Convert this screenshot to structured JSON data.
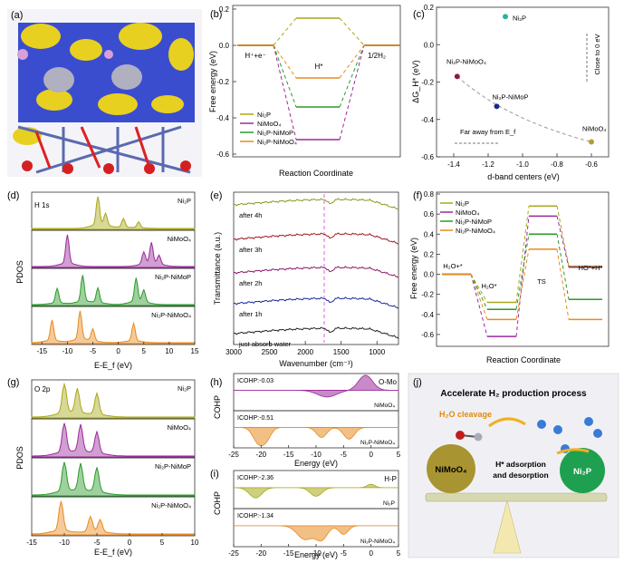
{
  "panel_letters": [
    "(a)",
    "(b)",
    "(c)",
    "(d)",
    "(e)",
    "(f)",
    "(g)",
    "(h)",
    "(i)",
    "(j)"
  ],
  "colors": {
    "ni2p": "#a8a818",
    "nimoo4": "#9a2a9a",
    "ni2p_nimop": "#2a9a2a",
    "ni2p_nimoo4": "#e88a20"
  },
  "chart_data": [
    {
      "panel": "b",
      "type": "line",
      "ylabel": "Free energy (eV)",
      "xlabel": "Reaction Coordinate",
      "ylim": [
        -0.6,
        0.2
      ],
      "yticks": [
        "0.2",
        "0.0",
        "-0.2",
        "-0.4",
        "-0.6"
      ],
      "states": [
        "H⁺+e⁻",
        "H*",
        "1/2H₂"
      ],
      "series": [
        {
          "name": "Ni₂P",
          "values": [
            0,
            0.15,
            0
          ]
        },
        {
          "name": "NiMoO₄",
          "values": [
            0,
            -0.52,
            0
          ]
        },
        {
          "name": "Ni₂P-NiMoP",
          "values": [
            0,
            -0.34,
            0
          ]
        },
        {
          "name": "Ni₂P-NiMoO₄",
          "values": [
            0,
            -0.18,
            0
          ]
        }
      ]
    },
    {
      "panel": "c",
      "type": "scatter",
      "ylabel": "ΔG_H* (eV)",
      "xlabel": "d-band centers (eV)",
      "xlim": [
        -1.5,
        -0.5
      ],
      "ylim": [
        -0.6,
        0.2
      ],
      "xticks": [
        "-1.4",
        "-1.2",
        "-1.0",
        "-0.8",
        "-0.6"
      ],
      "yticks": [
        "0.2",
        "0.0",
        "-0.2",
        "-0.4",
        "-0.6"
      ],
      "points": [
        {
          "name": "Ni₂P",
          "x": -1.1,
          "y": 0.15
        },
        {
          "name": "Ni₂P-NiMoO₄",
          "x": -1.38,
          "y": -0.17
        },
        {
          "name": "Ni₂P-NiMoP",
          "x": -1.15,
          "y": -0.33
        },
        {
          "name": "NiMoO₄",
          "x": -0.6,
          "y": -0.52
        }
      ],
      "annotations": [
        "Close to 0 eV",
        "Far away from E_f"
      ]
    },
    {
      "panel": "d",
      "type": "area",
      "ylabel": "PDOS",
      "xlabel": "E-E_f (eV)",
      "xlim": [
        -17,
        15
      ],
      "xticks": [
        "-15",
        "-10",
        "-5",
        "0",
        "5",
        "10",
        "15"
      ],
      "orbital": "H 1s",
      "series": [
        {
          "name": "Ni₂P",
          "peaks": [
            [
              -4,
              1.0
            ],
            [
              -2.5,
              0.4
            ],
            [
              1,
              0.3
            ],
            [
              4,
              0.2
            ]
          ]
        },
        {
          "name": "NiMoO₄",
          "peaks": [
            [
              -10,
              1.0
            ],
            [
              6.5,
              0.7
            ],
            [
              5,
              0.4
            ],
            [
              8,
              0.3
            ]
          ]
        },
        {
          "name": "Ni₂P-NiMoP",
          "peaks": [
            [
              -12,
              0.5
            ],
            [
              -7,
              0.9
            ],
            [
              -4,
              0.5
            ],
            [
              3.5,
              0.8
            ],
            [
              5,
              0.4
            ]
          ]
        },
        {
          "name": "Ni₂P-NiMoO₄",
          "peaks": [
            [
              -13,
              0.7
            ],
            [
              -7.5,
              1.0
            ],
            [
              -5,
              0.4
            ],
            [
              3,
              0.6
            ]
          ]
        }
      ]
    },
    {
      "panel": "e",
      "type": "line",
      "ylabel": "Transmittance (a.u.)",
      "xlabel": "Wavenumber (cm⁻¹)",
      "xlim": [
        3000,
        700
      ],
      "xticks": [
        "3000",
        "2500",
        "2000",
        "1500",
        "1000"
      ],
      "series": [
        {
          "name": "after 4h"
        },
        {
          "name": "after 3h"
        },
        {
          "name": "after 2h"
        },
        {
          "name": "after 1h"
        },
        {
          "name": "just absorb water"
        }
      ]
    },
    {
      "panel": "f",
      "type": "line",
      "ylabel": "Free energy (eV)",
      "xlabel": "Reaction Coordinate",
      "ylim": [
        -0.7,
        0.8
      ],
      "states": [
        "H₂O+*",
        "H₂O*",
        "TS",
        "HO*+H*"
      ],
      "series": [
        {
          "name": "Ni₂P",
          "values": [
            0,
            -0.28,
            0.68,
            0.08
          ]
        },
        {
          "name": "NiMoO₄",
          "values": [
            0,
            -0.62,
            0.58,
            0.07
          ]
        },
        {
          "name": "Ni₂P-NiMoP",
          "values": [
            0,
            -0.35,
            0.4,
            -0.25
          ]
        },
        {
          "name": "Ni₂P-NiMoO₄",
          "values": [
            0,
            -0.45,
            0.25,
            -0.45
          ]
        }
      ]
    },
    {
      "panel": "g",
      "type": "area",
      "ylabel": "PDOS",
      "xlabel": "E-E_f (eV)",
      "xlim": [
        -15,
        10
      ],
      "xticks": [
        "-15",
        "-10",
        "-5",
        "0",
        "5",
        "10"
      ],
      "orbital": "O 2p",
      "series": [
        {
          "name": "Ni₂P",
          "peaks": [
            [
              -10,
              1.0
            ],
            [
              -8,
              0.8
            ],
            [
              -5,
              0.7
            ]
          ]
        },
        {
          "name": "NiMoO₄",
          "peaks": [
            [
              -10,
              1.0
            ],
            [
              -7.5,
              0.9
            ],
            [
              -5,
              0.7
            ]
          ]
        },
        {
          "name": "Ni₂P-NiMoP",
          "peaks": [
            [
              -10,
              1.0
            ],
            [
              -7.5,
              0.9
            ],
            [
              -5,
              0.8
            ]
          ]
        },
        {
          "name": "Ni₂P-NiMoO₄",
          "peaks": [
            [
              -10.5,
              1.0
            ],
            [
              -6,
              0.5
            ],
            [
              -4.5,
              0.4
            ]
          ]
        }
      ]
    },
    {
      "panel": "h",
      "type": "area",
      "ylabel": "COHP",
      "xlabel": "Energy (eV)",
      "xlim": [
        -25,
        5
      ],
      "xticks": [
        "-25",
        "-20",
        "-15",
        "-10",
        "-5",
        "0",
        "5"
      ],
      "bond": "O-Mo",
      "series": [
        {
          "name": "NiMoO₄",
          "icohp": "ICOHP:-0.03"
        },
        {
          "name": "Ni₂P-NiMoO₄",
          "icohp": "ICOHP:-0.51"
        }
      ]
    },
    {
      "panel": "i",
      "type": "area",
      "ylabel": "COHP",
      "xlabel": "Energy (eV)",
      "xlim": [
        -25,
        5
      ],
      "xticks": [
        "-25",
        "-20",
        "-15",
        "-10",
        "-5",
        "0",
        "5"
      ],
      "bond": "H-P",
      "series": [
        {
          "name": "Ni₂P",
          "icohp": "ICOHP:-2.36"
        },
        {
          "name": "Ni₂P-NiMoO₄",
          "icohp": "ICOHP:-1.34"
        }
      ]
    }
  ],
  "panel_j": {
    "title": "Accelerate H₂ production process",
    "h2o_label": "H₂O cleavage",
    "left_sphere": "NiMoO₄",
    "right_sphere": "Ni₂P",
    "middle_text_1": "H* adsorption",
    "middle_text_2": "and desorption"
  }
}
